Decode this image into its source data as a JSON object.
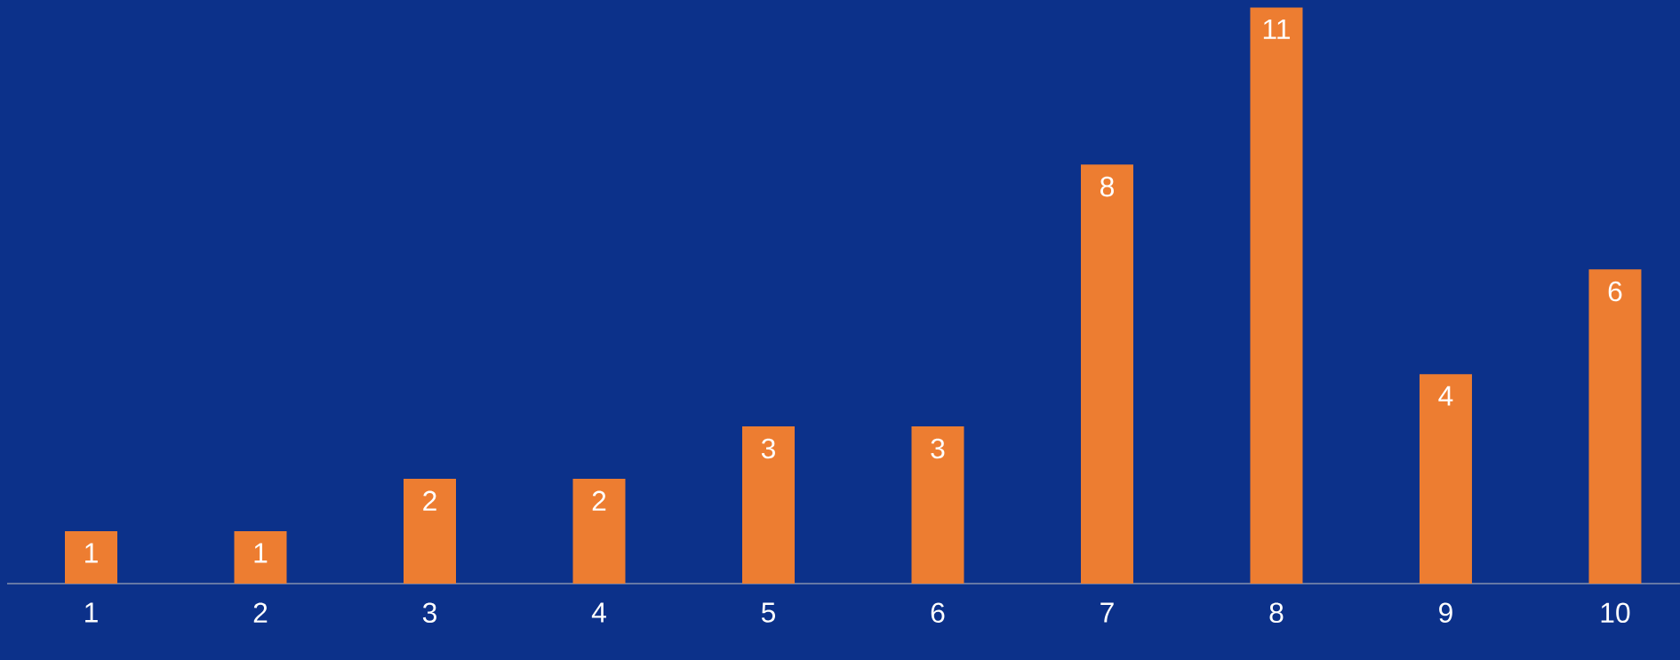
{
  "chart_data": {
    "type": "bar",
    "categories": [
      "1",
      "2",
      "3",
      "4",
      "5",
      "6",
      "7",
      "8",
      "9",
      "10"
    ],
    "values": [
      1,
      1,
      2,
      2,
      3,
      3,
      8,
      11,
      4,
      6
    ],
    "color": "#ed7d31",
    "data_labels": true
  }
}
